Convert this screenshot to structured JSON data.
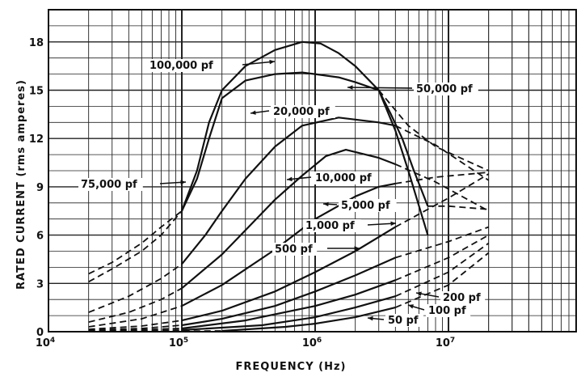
{
  "chart_data": {
    "type": "line",
    "title": "",
    "xlabel": "FREQUENCY (Hz)",
    "ylabel": "RATED CURRENT (rms amperes)",
    "xscale": "log",
    "xlim": [
      10000,
      100000000
    ],
    "ylim": [
      0,
      20
    ],
    "grid": true,
    "x_ticks": [
      {
        "value": 10000,
        "base": "10",
        "exp": "4"
      },
      {
        "value": 100000,
        "base": "10",
        "exp": "5"
      },
      {
        "value": 1000000,
        "base": "10",
        "exp": "6"
      },
      {
        "value": 10000000,
        "base": "10",
        "exp": "7"
      }
    ],
    "y_ticks": [
      {
        "value": 0,
        "label": "0"
      },
      {
        "value": 3,
        "label": "3"
      },
      {
        "value": 6,
        "label": "6"
      },
      {
        "value": 9,
        "label": "9"
      },
      {
        "value": 12,
        "label": "12"
      },
      {
        "value": 15,
        "label": "15"
      },
      {
        "value": 18,
        "label": "18"
      }
    ],
    "series": [
      {
        "name": "100,000 pf",
        "points": [
          [
            100000,
            7.5
          ],
          [
            130000,
            10
          ],
          [
            160000,
            13
          ],
          [
            200000,
            15
          ],
          [
            300000,
            16.5
          ],
          [
            500000,
            17.5
          ],
          [
            800000,
            18
          ],
          [
            1100000,
            17.9
          ],
          [
            1500000,
            17.3
          ],
          [
            2000000,
            16.5
          ],
          [
            3000000,
            15
          ],
          [
            4000000,
            12.5
          ],
          [
            5000000,
            10
          ],
          [
            7000000,
            6
          ]
        ],
        "dashed_below": [
          [
            20000,
            3.6
          ],
          [
            30000,
            4.3
          ],
          [
            50000,
            5.5
          ],
          [
            70000,
            6.5
          ],
          [
            100000,
            7.5
          ]
        ]
      },
      {
        "name": "75,000 pf",
        "points": [
          [
            100000,
            7.5
          ],
          [
            130000,
            9.5
          ],
          [
            160000,
            12
          ],
          [
            200000,
            14.5
          ],
          [
            300000,
            15.6
          ],
          [
            500000,
            16
          ],
          [
            800000,
            16.1
          ],
          [
            1000000,
            16
          ],
          [
            1500000,
            15.8
          ],
          [
            2000000,
            15.5
          ],
          [
            3000000,
            15
          ]
        ],
        "dashed_below": [
          [
            20000,
            3.1
          ],
          [
            30000,
            3.9
          ],
          [
            50000,
            5
          ],
          [
            70000,
            6
          ],
          [
            100000,
            7.5
          ]
        ],
        "dashed_above": [
          [
            3000000,
            15
          ],
          [
            5000000,
            12.8
          ],
          [
            8000000,
            11.5
          ],
          [
            20000000,
            10
          ]
        ]
      },
      {
        "name": "50,000 pf",
        "points": [
          [
            3000000,
            15
          ],
          [
            3700000,
            13.5
          ],
          [
            4500000,
            12
          ],
          [
            5500000,
            10
          ],
          [
            7000000,
            7.8
          ]
        ],
        "dashed_above": [
          [
            7000000,
            7.8
          ],
          [
            10000000,
            7.8
          ],
          [
            20000000,
            7.6
          ]
        ]
      },
      {
        "name": "20,000 pf",
        "points": [
          [
            100000,
            4.2
          ],
          [
            150000,
            6
          ],
          [
            200000,
            7.5
          ],
          [
            300000,
            9.5
          ],
          [
            500000,
            11.5
          ],
          [
            800000,
            12.8
          ],
          [
            1500000,
            13.3
          ],
          [
            3000000,
            13
          ],
          [
            4000000,
            12.8
          ]
        ],
        "dashed_below": [
          [
            20000,
            1.2
          ],
          [
            40000,
            2.2
          ],
          [
            70000,
            3.3
          ],
          [
            100000,
            4.2
          ]
        ],
        "dashed_above": [
          [
            4000000,
            12.8
          ],
          [
            8000000,
            11.6
          ],
          [
            20000000,
            9.4
          ]
        ]
      },
      {
        "name": "10,000 pf",
        "points": [
          [
            100000,
            2.7
          ],
          [
            200000,
            4.8
          ],
          [
            300000,
            6.3
          ],
          [
            500000,
            8.2
          ],
          [
            800000,
            9.7
          ],
          [
            1200000,
            10.9
          ],
          [
            1700000,
            11.3
          ],
          [
            3000000,
            10.8
          ],
          [
            4000000,
            10.4
          ]
        ],
        "dashed_below": [
          [
            20000,
            0.6
          ],
          [
            40000,
            1.2
          ],
          [
            70000,
            2
          ],
          [
            100000,
            2.7
          ]
        ],
        "dashed_above": [
          [
            4000000,
            10.4
          ],
          [
            8000000,
            9.3
          ],
          [
            20000000,
            7.5
          ]
        ]
      },
      {
        "name": "5,000 pf",
        "points": [
          [
            100000,
            1.6
          ],
          [
            200000,
            2.9
          ],
          [
            500000,
            5.1
          ],
          [
            1000000,
            7
          ],
          [
            2000000,
            8.4
          ],
          [
            3000000,
            9
          ],
          [
            4000000,
            9.2
          ]
        ],
        "dashed_below": [
          [
            20000,
            0.3
          ],
          [
            50000,
            0.8
          ],
          [
            100000,
            1.6
          ]
        ],
        "dashed_above": [
          [
            4000000,
            9.2
          ],
          [
            8000000,
            9.6
          ],
          [
            20000000,
            9.9
          ]
        ]
      },
      {
        "name": "1,000 pf",
        "points": [
          [
            100000,
            0.7
          ],
          [
            200000,
            1.3
          ],
          [
            500000,
            2.5
          ],
          [
            1000000,
            3.7
          ],
          [
            2000000,
            5
          ],
          [
            4000000,
            6.5
          ]
        ],
        "dashed_below": [
          [
            20000,
            0.15
          ],
          [
            50000,
            0.35
          ],
          [
            100000,
            0.7
          ]
        ],
        "dashed_above": [
          [
            4000000,
            6.5
          ],
          [
            10000000,
            8.3
          ],
          [
            20000000,
            9.8
          ]
        ]
      },
      {
        "name": "500 pf",
        "points": [
          [
            100000,
            0.4
          ],
          [
            200000,
            0.8
          ],
          [
            500000,
            1.6
          ],
          [
            1000000,
            2.5
          ],
          [
            2000000,
            3.5
          ],
          [
            4000000,
            4.6
          ]
        ],
        "dashed_below": [
          [
            20000,
            0.1
          ],
          [
            50000,
            0.2
          ],
          [
            100000,
            0.4
          ]
        ],
        "dashed_above": [
          [
            4000000,
            4.6
          ],
          [
            10000000,
            5.6
          ],
          [
            20000000,
            6.5
          ]
        ]
      },
      {
        "name": "200 pf",
        "points": [
          [
            100000,
            0.2
          ],
          [
            300000,
            0.7
          ],
          [
            1000000,
            1.6
          ],
          [
            2000000,
            2.3
          ],
          [
            4000000,
            3.2
          ]
        ],
        "dashed_below": [
          [
            20000,
            0.05
          ],
          [
            100000,
            0.2
          ]
        ],
        "dashed_above": [
          [
            4000000,
            3.2
          ],
          [
            10000000,
            4.6
          ],
          [
            20000000,
            6
          ]
        ]
      },
      {
        "name": "100 pf",
        "points": [
          [
            100000,
            0.1
          ],
          [
            400000,
            0.4
          ],
          [
            1000000,
            0.9
          ],
          [
            2000000,
            1.5
          ],
          [
            4000000,
            2.2
          ]
        ],
        "dashed_below": [
          [
            20000,
            0
          ],
          [
            100000,
            0.1
          ]
        ],
        "dashed_above": [
          [
            4000000,
            2.2
          ],
          [
            10000000,
            3.7
          ],
          [
            20000000,
            5.5
          ]
        ]
      },
      {
        "name": "50 pf",
        "points": [
          [
            200000,
            0.05
          ],
          [
            600000,
            0.3
          ],
          [
            1000000,
            0.5
          ],
          [
            2000000,
            0.9
          ],
          [
            4000000,
            1.5
          ]
        ],
        "dashed_below": [
          [
            20000,
            0
          ],
          [
            200000,
            0.05
          ]
        ],
        "dashed_above": [
          [
            4000000,
            1.5
          ],
          [
            10000000,
            2.9
          ],
          [
            20000000,
            4.9
          ]
        ]
      }
    ],
    "labels": [
      {
        "text": "100,000 pf"
      },
      {
        "text": "50,000 pf"
      },
      {
        "text": "20,000 pf"
      },
      {
        "text": "75,000 pf"
      },
      {
        "text": "10,000 pf"
      },
      {
        "text": "5,000 pf"
      },
      {
        "text": "1,000 pf"
      },
      {
        "text": "500 pf"
      },
      {
        "text": "200 pf"
      },
      {
        "text": "100 pf"
      },
      {
        "text": "50 pf"
      }
    ]
  }
}
